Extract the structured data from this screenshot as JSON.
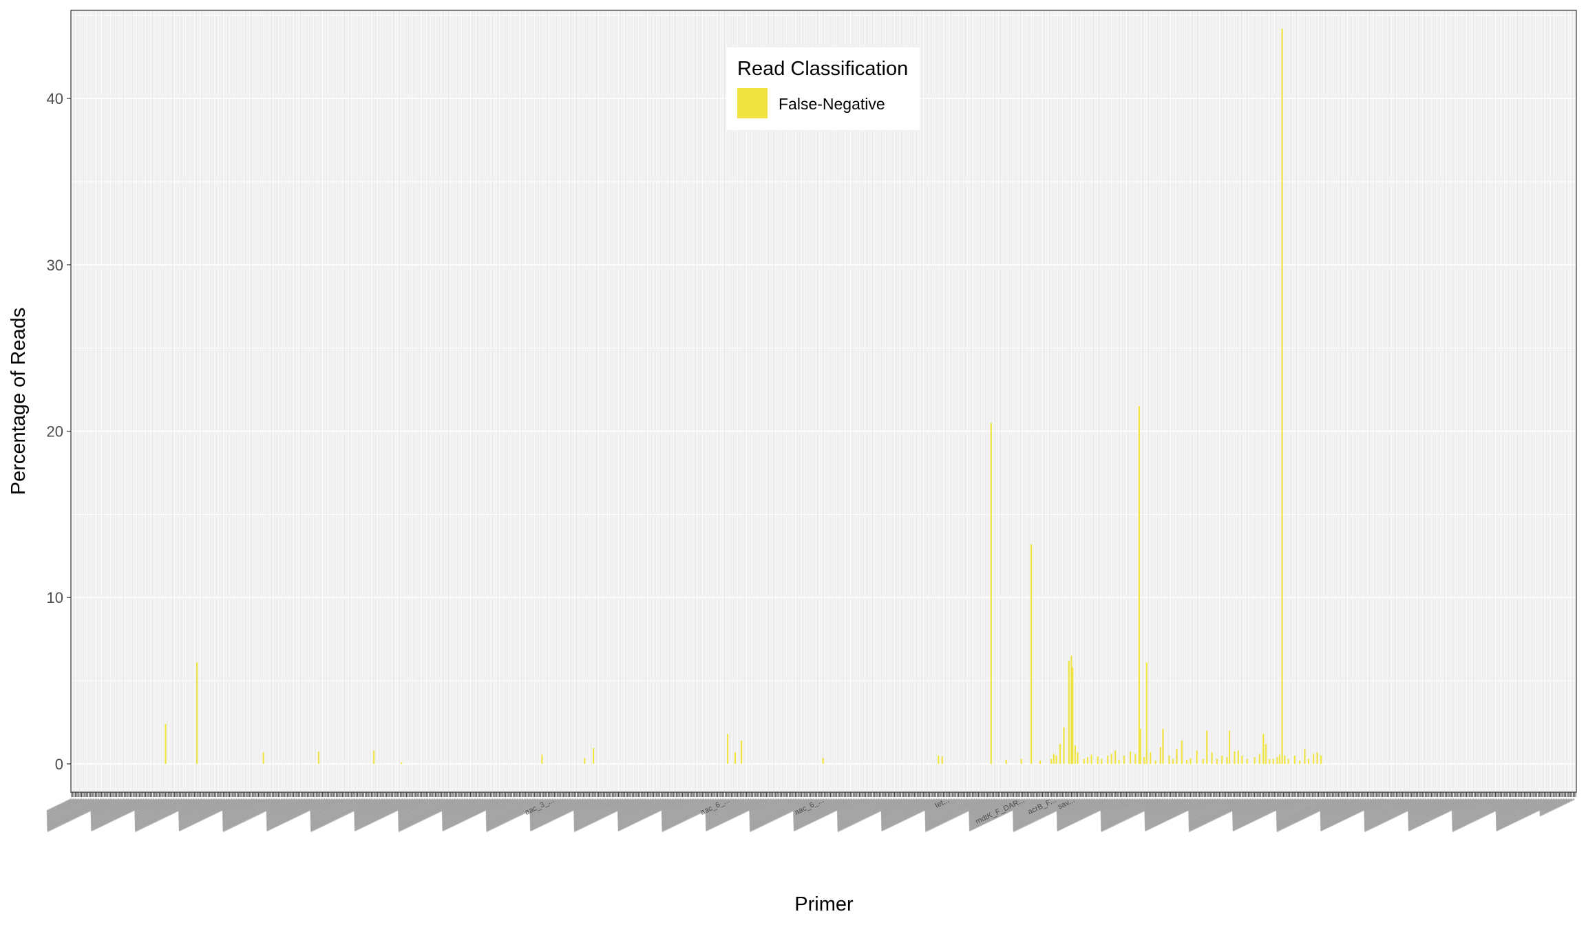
{
  "chart_data": {
    "type": "bar",
    "xlabel": "Primer",
    "ylabel": "Percentage of Reads",
    "ylim": [
      -1.7,
      45.3
    ],
    "yticks": [
      0,
      10,
      20,
      30,
      40
    ],
    "ytick_labels": [
      "0",
      "10",
      "20",
      "30",
      "40"
    ],
    "grid": true,
    "legend": {
      "title": "Read Classification",
      "position": "top-center-inside",
      "entries": [
        {
          "name": "False-Negative",
          "color": "#f0e442"
        }
      ]
    },
    "x_tick_labels_legible": [
      "aac_3_...",
      "aac_6_...",
      "aac_6_...",
      "tet...",
      "mdtK_F_DAR...",
      "acrB_F...",
      "sav..."
    ],
    "n_categories": 1200,
    "series": [
      {
        "name": "False-Negative",
        "color": "#f0e442",
        "bars": [
          {
            "i": 75,
            "v": 2.4
          },
          {
            "i": 100,
            "v": 6.1
          },
          {
            "i": 153,
            "v": 0.7
          },
          {
            "i": 197,
            "v": 0.75
          },
          {
            "i": 241,
            "v": 0.8
          },
          {
            "i": 263,
            "v": 0.1
          },
          {
            "i": 375,
            "v": 0.55
          },
          {
            "i": 409,
            "v": 0.35
          },
          {
            "i": 416,
            "v": 0.95
          },
          {
            "i": 523,
            "v": 1.8
          },
          {
            "i": 529,
            "v": 0.7
          },
          {
            "i": 534,
            "v": 1.4
          },
          {
            "i": 599,
            "v": 0.35
          },
          {
            "i": 691,
            "v": 0.5
          },
          {
            "i": 694,
            "v": 0.45
          },
          {
            "i": 733,
            "v": 20.5
          },
          {
            "i": 745,
            "v": 0.25
          },
          {
            "i": 757,
            "v": 0.3
          },
          {
            "i": 765,
            "v": 13.2
          },
          {
            "i": 772,
            "v": 0.2
          },
          {
            "i": 781,
            "v": 0.3
          },
          {
            "i": 783,
            "v": 0.6
          },
          {
            "i": 785,
            "v": 0.5
          },
          {
            "i": 788,
            "v": 1.2
          },
          {
            "i": 791,
            "v": 2.2
          },
          {
            "i": 795,
            "v": 6.2
          },
          {
            "i": 797,
            "v": 6.5
          },
          {
            "i": 798,
            "v": 5.8
          },
          {
            "i": 800,
            "v": 1.1
          },
          {
            "i": 802,
            "v": 0.7
          },
          {
            "i": 807,
            "v": 0.3
          },
          {
            "i": 810,
            "v": 0.4
          },
          {
            "i": 813,
            "v": 0.55
          },
          {
            "i": 818,
            "v": 0.45
          },
          {
            "i": 821,
            "v": 0.3
          },
          {
            "i": 826,
            "v": 0.5
          },
          {
            "i": 829,
            "v": 0.6
          },
          {
            "i": 832,
            "v": 0.8
          },
          {
            "i": 835,
            "v": 0.25
          },
          {
            "i": 839,
            "v": 0.5
          },
          {
            "i": 844,
            "v": 0.75
          },
          {
            "i": 848,
            "v": 0.6
          },
          {
            "i": 851,
            "v": 21.5
          },
          {
            "i": 852,
            "v": 2.1
          },
          {
            "i": 855,
            "v": 0.4
          },
          {
            "i": 857,
            "v": 6.1
          },
          {
            "i": 860,
            "v": 0.7
          },
          {
            "i": 864,
            "v": 0.2
          },
          {
            "i": 868,
            "v": 1.0
          },
          {
            "i": 870,
            "v": 2.1
          },
          {
            "i": 875,
            "v": 0.5
          },
          {
            "i": 878,
            "v": 0.3
          },
          {
            "i": 881,
            "v": 0.9
          },
          {
            "i": 885,
            "v": 1.4
          },
          {
            "i": 889,
            "v": 0.25
          },
          {
            "i": 892,
            "v": 0.35
          },
          {
            "i": 897,
            "v": 0.8
          },
          {
            "i": 902,
            "v": 0.3
          },
          {
            "i": 905,
            "v": 2.0
          },
          {
            "i": 909,
            "v": 0.7
          },
          {
            "i": 913,
            "v": 0.3
          },
          {
            "i": 917,
            "v": 0.5
          },
          {
            "i": 921,
            "v": 0.4
          },
          {
            "i": 923,
            "v": 2.0
          },
          {
            "i": 927,
            "v": 0.75
          },
          {
            "i": 930,
            "v": 0.8
          },
          {
            "i": 933,
            "v": 0.5
          },
          {
            "i": 937,
            "v": 0.3
          },
          {
            "i": 943,
            "v": 0.4
          },
          {
            "i": 947,
            "v": 0.6
          },
          {
            "i": 950,
            "v": 1.8
          },
          {
            "i": 952,
            "v": 1.2
          },
          {
            "i": 955,
            "v": 0.3
          },
          {
            "i": 958,
            "v": 0.3
          },
          {
            "i": 961,
            "v": 0.4
          },
          {
            "i": 963,
            "v": 0.55
          },
          {
            "i": 965,
            "v": 44.2
          },
          {
            "i": 967,
            "v": 0.5
          },
          {
            "i": 970,
            "v": 0.3
          },
          {
            "i": 975,
            "v": 0.5
          },
          {
            "i": 979,
            "v": 0.2
          },
          {
            "i": 983,
            "v": 0.9
          },
          {
            "i": 986,
            "v": 0.3
          },
          {
            "i": 990,
            "v": 0.6
          },
          {
            "i": 993,
            "v": 0.7
          },
          {
            "i": 996,
            "v": 0.5
          }
        ]
      }
    ]
  }
}
